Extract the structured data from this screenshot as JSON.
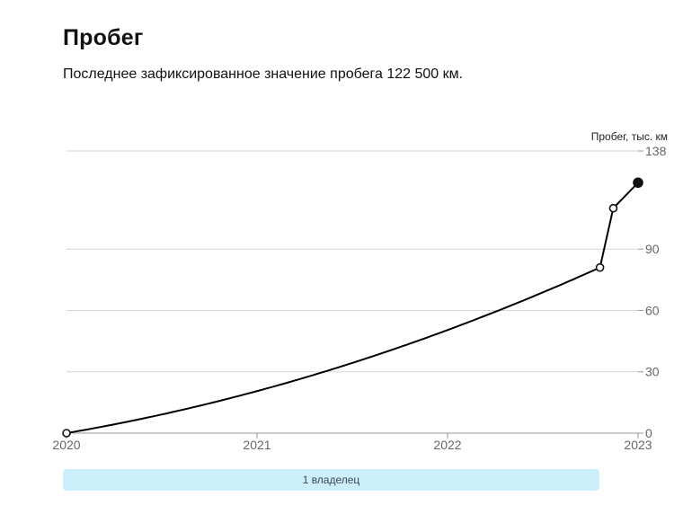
{
  "header": {
    "title": "Пробег",
    "subtitle": "Последнее зафиксированное значение пробега 122 500 км."
  },
  "owners": {
    "label": "1 владелец"
  },
  "colors": {
    "line": "#000000",
    "grid": "#d6d6d6",
    "owner_bar": "#cdeefb"
  },
  "chart_data": {
    "type": "line",
    "ylabel": "Пробег, тыс. км",
    "xlabel": "",
    "ylim": [
      0,
      138
    ],
    "xlim": [
      2020,
      2023
    ],
    "yticks": [
      0,
      30,
      60,
      90,
      138
    ],
    "xticks": [
      "2020",
      "2021",
      "2022",
      "2023"
    ],
    "grid": true,
    "y_axis_position": "right",
    "series": [
      {
        "points": [
          {
            "x": 2020.0,
            "y": 0,
            "marker": "open"
          },
          {
            "x": 2022.8,
            "y": 81,
            "marker": "open"
          },
          {
            "x": 2022.87,
            "y": 110,
            "marker": "open"
          },
          {
            "x": 2023.0,
            "y": 122.5,
            "marker": "filled"
          }
        ]
      }
    ]
  }
}
